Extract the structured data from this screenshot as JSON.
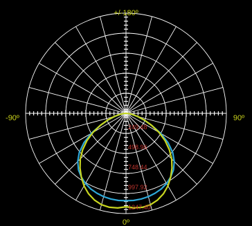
{
  "chart_data": {
    "type": "polar",
    "title": "",
    "angle_labels": {
      "top": "+/-180º",
      "left": "-90º",
      "right": "90º",
      "bottom": "0º"
    },
    "angle_grid_step_deg": 15,
    "radial_max": 1250,
    "radial_rings": [
      250,
      500,
      750,
      1000,
      1250
    ],
    "radial_tick_labels": [
      "249.48",
      "498.96",
      "748.44",
      "997.92",
      "1247.40"
    ],
    "series": [
      {
        "color": "#2ea8d8",
        "angles_deg": [
          0,
          5,
          10,
          15,
          20,
          25,
          30,
          35,
          40,
          45,
          50,
          55,
          60,
          65,
          70,
          75,
          80,
          85,
          90
        ],
        "values": [
          1090,
          1090,
          1085,
          1075,
          1060,
          1040,
          1010,
          970,
          920,
          850,
          760,
          640,
          500,
          350,
          230,
          140,
          70,
          25,
          0
        ]
      },
      {
        "color": "#c9d620",
        "angles_deg": [
          0,
          5,
          10,
          15,
          20,
          25,
          30,
          35,
          40,
          45,
          50,
          55,
          60,
          65,
          70,
          75,
          80,
          85,
          90
        ],
        "values": [
          1165,
          1185,
          1190,
          1180,
          1150,
          1105,
          1045,
          970,
          890,
          805,
          705,
          595,
          475,
          350,
          240,
          150,
          80,
          30,
          0
        ]
      }
    ],
    "colors": {
      "background": "#000000",
      "grid": "#ffffff",
      "angle_label": "#c9d21c",
      "radial_label": "#c0352e"
    }
  }
}
